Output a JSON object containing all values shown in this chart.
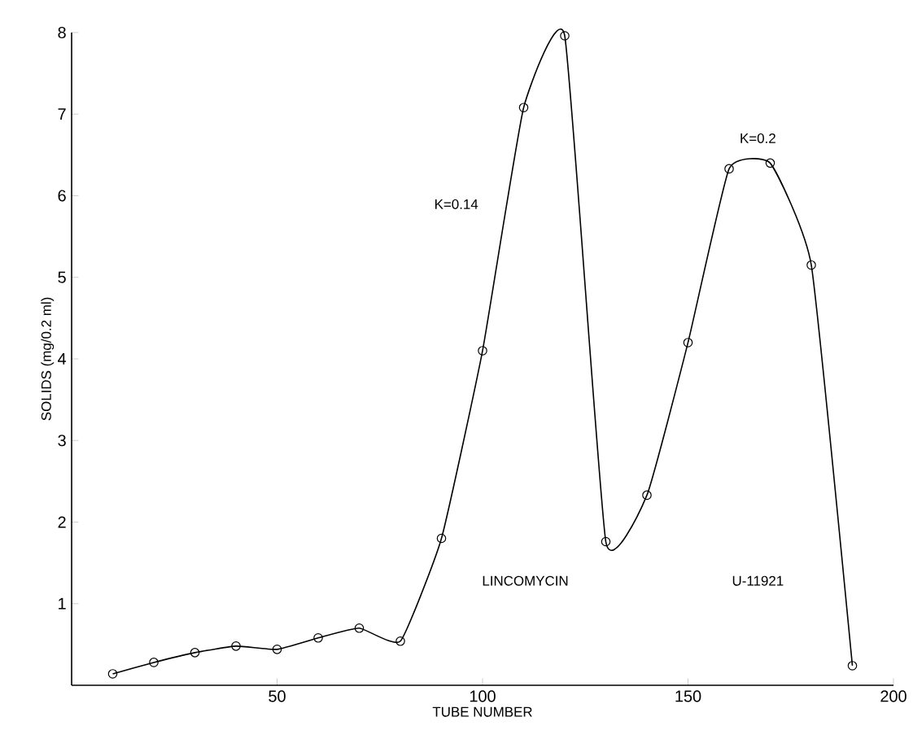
{
  "chart_data": {
    "type": "line",
    "xlabel": "TUBE NUMBER",
    "ylabel": "SOLIDS (mg/0.2 ml)",
    "x": [
      10,
      20,
      30,
      40,
      50,
      60,
      70,
      80,
      90,
      100,
      110,
      120,
      130,
      140,
      150,
      160,
      170,
      180,
      190
    ],
    "values": [
      0.14,
      0.28,
      0.4,
      0.48,
      0.44,
      0.58,
      0.7,
      0.54,
      1.8,
      4.1,
      7.08,
      7.96,
      1.76,
      2.33,
      4.2,
      6.33,
      6.4,
      5.15,
      0.24
    ],
    "color": "#000000",
    "marker": "circle",
    "line_style": "solid",
    "xlim": [
      0,
      200
    ],
    "ylim": [
      0,
      8
    ],
    "xticks": [
      50,
      100,
      150,
      200
    ],
    "yticks": [
      1,
      2,
      3,
      4,
      5,
      6,
      7,
      8
    ],
    "annotations": [
      "K=0.14",
      "K=0.2",
      "LINCOMYCIN",
      "U-11921"
    ]
  }
}
